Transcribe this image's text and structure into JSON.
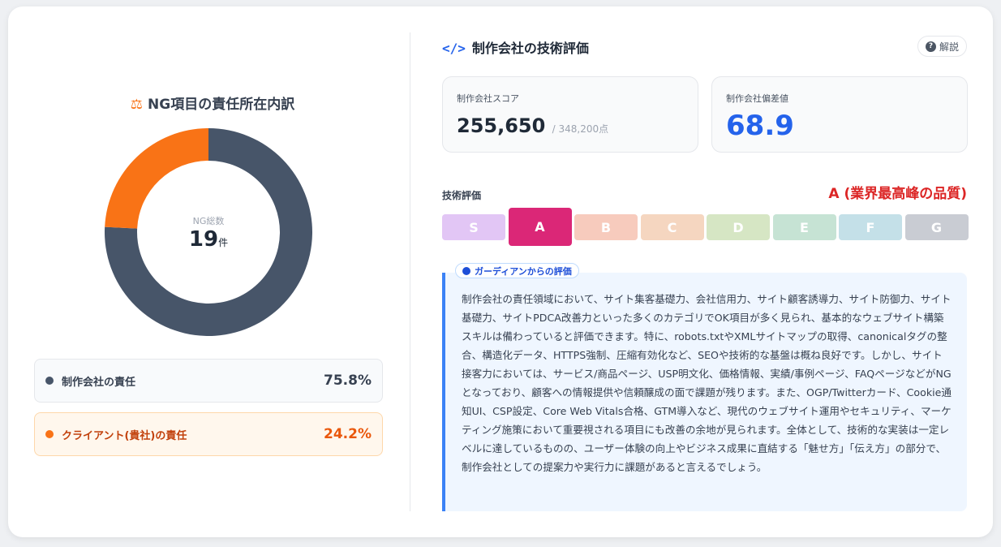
{
  "left": {
    "title": "NG項目の責任所在内訳",
    "title_icon": "scale-icon",
    "center_label": "NG総数",
    "center_value": "19",
    "center_unit": "件",
    "chart_data": {
      "type": "pie",
      "donut": true,
      "categories": [
        "制作会社の責任",
        "クライアント(貴社)の責任"
      ],
      "values": [
        75.8,
        24.2
      ],
      "colors": [
        "#475569",
        "#f97316"
      ]
    },
    "legend": [
      {
        "label": "制作会社の責任",
        "percent": "75.8%",
        "color": "#475569"
      },
      {
        "label": "クライアント(貴社)の責任",
        "percent": "24.2%",
        "color": "#f97316"
      }
    ]
  },
  "right": {
    "title": "制作会社の技術評価",
    "title_icon": "code-icon",
    "help_label": "解説",
    "score_label": "制作会社スコア",
    "score_value": "255,650",
    "score_total": "/ 348,200点",
    "deviation_label": "制作会社偏差値",
    "deviation_value": "68.9",
    "tech_label": "技術評価",
    "grade_text": "A (業界最高峰の品質)",
    "grades": [
      {
        "label": "S",
        "color": "#e2c6f5"
      },
      {
        "label": "A",
        "color": "#db2777",
        "active": true
      },
      {
        "label": "B",
        "color": "#f7cbbd"
      },
      {
        "label": "C",
        "color": "#f5d6c0"
      },
      {
        "label": "D",
        "color": "#d6e6c4"
      },
      {
        "label": "E",
        "color": "#c6e3d4"
      },
      {
        "label": "F",
        "color": "#c4e0e8"
      },
      {
        "label": "G",
        "color": "#c9ccd3"
      }
    ],
    "comment_tag": "ガーディアンからの評価",
    "comment": "制作会社の責任領域において、サイト集客基礎力、会社信用力、サイト顧客誘導力、サイト防御力、サイト基礎力、サイトPDCA改善力といった多くのカテゴリでOK項目が多く見られ、基本的なウェブサイト構築スキルは備わっていると評価できます。特に、robots.txtやXMLサイトマップの取得、canonicalタグの整合、構造化データ、HTTPS強制、圧縮有効化など、SEOや技術的な基盤は概ね良好です。しかし、サイト接客力においては、サービス/商品ページ、USP明文化、価格情報、実績/事例ページ、FAQページなどがNGとなっており、顧客への情報提供や信頼醸成の面で課題が残ります。また、OGP/Twitterカード、Cookie通知UI、CSP設定、Core Web Vitals合格、GTM導入など、現代のウェブサイト運用やセキュリティ、マーケティング施策において重要視される項目にも改善の余地が見られます。全体として、技術的な実装は一定レベルに達しているものの、ユーザー体験の向上やビジネス成果に直結する「魅せ方」「伝え方」の部分で、制作会社としての提案力や実行力に課題があると言えるでしょう。"
  }
}
